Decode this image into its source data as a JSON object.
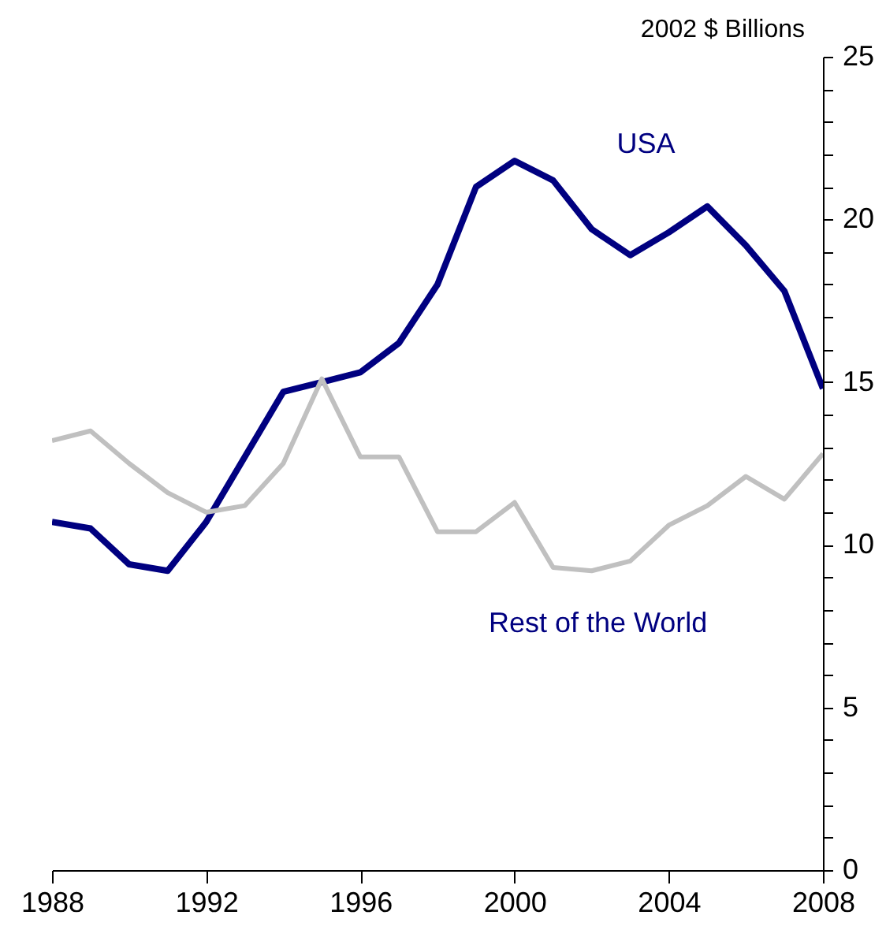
{
  "chart_data": {
    "type": "line",
    "ylabel": "2002 $ Billions",
    "x": [
      1988,
      1989,
      1990,
      1991,
      1992,
      1993,
      1994,
      1995,
      1996,
      1997,
      1998,
      1999,
      2000,
      2001,
      2002,
      2003,
      2004,
      2005,
      2006,
      2007,
      2008
    ],
    "xlim": [
      1988,
      2008
    ],
    "xticks": [
      1988,
      1992,
      1996,
      2000,
      2004,
      2008
    ],
    "ylim": [
      0,
      25
    ],
    "yticks": [
      0,
      {
        "value": 1,
        "label": null
      },
      {
        "value": 2,
        "label": null
      },
      {
        "value": 3,
        "label": null
      },
      {
        "value": 4,
        "label": null
      },
      5,
      {
        "value": 6,
        "label": null
      },
      {
        "value": 7,
        "label": null
      },
      {
        "value": 8,
        "label": null
      },
      {
        "value": 9,
        "label": null
      },
      10,
      {
        "value": 11,
        "label": null
      },
      {
        "value": 12,
        "label": null
      },
      {
        "value": 13,
        "label": null
      },
      {
        "value": 14,
        "label": null
      },
      15,
      {
        "value": 16,
        "label": null
      },
      {
        "value": 17,
        "label": null
      },
      {
        "value": 18,
        "label": null
      },
      {
        "value": 19,
        "label": null
      },
      20,
      {
        "value": 21,
        "label": null
      },
      {
        "value": 22,
        "label": null
      },
      {
        "value": 23,
        "label": null
      },
      {
        "value": 24,
        "label": null
      },
      25
    ],
    "grid": false,
    "legend": false,
    "line_style": "solid",
    "marker": "none",
    "series": [
      {
        "name": "USA",
        "color": "#000080",
        "values": [
          10.7,
          10.5,
          9.4,
          9.2,
          10.7,
          12.7,
          14.7,
          15.0,
          15.3,
          16.2,
          18.0,
          21.0,
          21.8,
          21.2,
          19.7,
          18.9,
          19.6,
          20.4,
          19.2,
          17.8,
          14.8
        ]
      },
      {
        "name": "Rest of the World",
        "color": "#c0c0c0",
        "values": [
          13.2,
          13.5,
          12.5,
          11.6,
          11.0,
          11.2,
          12.5,
          15.1,
          12.7,
          12.7,
          10.4,
          10.4,
          11.3,
          9.3,
          9.2,
          9.5,
          10.6,
          11.2,
          12.1,
          11.4,
          12.8
        ]
      }
    ]
  }
}
